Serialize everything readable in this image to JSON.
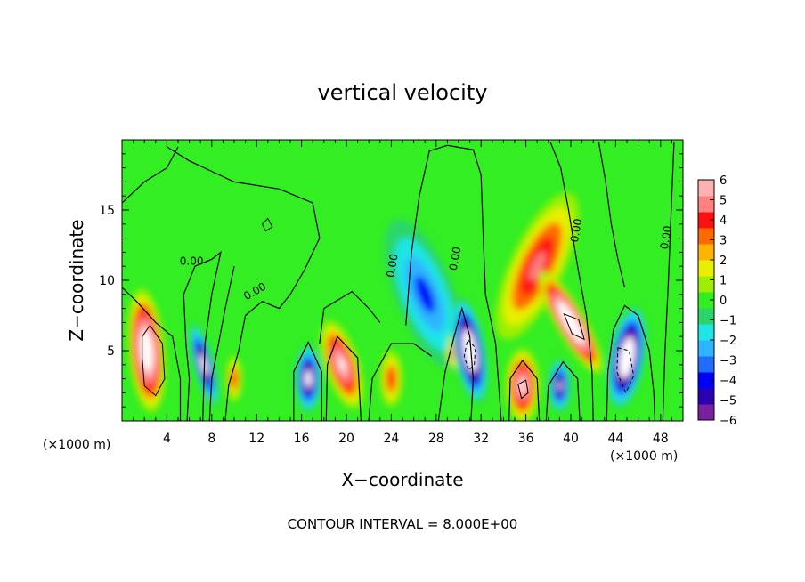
{
  "chart_data": {
    "type": "heatmap",
    "title": "vertical velocity",
    "xlabel": "X−coordinate",
    "ylabel": "Z−coordinate",
    "x_units_left": "(×1000 m)",
    "x_units_right": "(×1000 m)",
    "footnote": "CONTOUR INTERVAL = 8.000E+00",
    "xlim": [
      0,
      50
    ],
    "ylim": [
      0,
      20
    ],
    "x_ticks": [
      4,
      8,
      12,
      16,
      20,
      24,
      28,
      32,
      36,
      40,
      44,
      48
    ],
    "y_ticks": [
      5,
      10,
      15
    ],
    "contour_label": "0.00",
    "colorbar": {
      "ticks": [
        "6",
        "5",
        "4",
        "3",
        "2",
        "1",
        "0",
        "−1",
        "−2",
        "−3",
        "−4",
        "−5",
        "−6"
      ],
      "range": [
        -6,
        6
      ],
      "colors": [
        "#7a1fa0",
        "#2a00b0",
        "#0000ff",
        "#1f6cff",
        "#2fb4ff",
        "#1ee6e6",
        "#2ad66a",
        "#33ee22",
        "#9bf000",
        "#e8f000",
        "#ffb400",
        "#ff6a00",
        "#ff1010",
        "#ff8080",
        "#ffb0b0"
      ],
      "saturation_color": "#ffffff"
    },
    "features": [
      {
        "x": 2.2,
        "z": 5.0,
        "value": 9
      },
      {
        "x": 7.3,
        "z": 4.0,
        "value": -8
      },
      {
        "x": 10.0,
        "z": 3.0,
        "value": 4
      },
      {
        "x": 16.6,
        "z": 3.0,
        "value": -8
      },
      {
        "x": 19.6,
        "z": 4.0,
        "value": 7
      },
      {
        "x": 24.0,
        "z": 3.0,
        "value": 4
      },
      {
        "x": 27.0,
        "z": 9.0,
        "value": -4
      },
      {
        "x": 29.7,
        "z": 5.0,
        "value": 4
      },
      {
        "x": 31.0,
        "z": 5.0,
        "value": -10
      },
      {
        "x": 35.7,
        "z": 2.5,
        "value": 7
      },
      {
        "x": 37.0,
        "z": 11.0,
        "value": 5
      },
      {
        "x": 39.0,
        "z": 2.5,
        "value": -7
      },
      {
        "x": 40.0,
        "z": 7.0,
        "value": 10
      },
      {
        "x": 45.0,
        "z": 4.5,
        "value": -10
      }
    ]
  }
}
